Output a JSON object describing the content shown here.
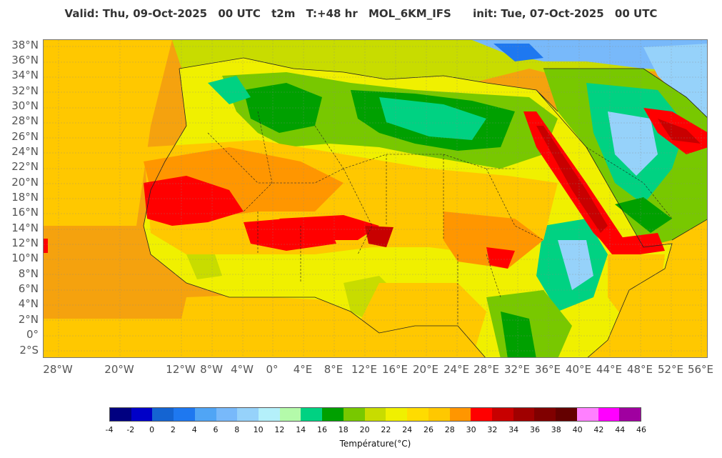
{
  "header": {
    "valid": "Valid: Thu, 09-Oct-2025",
    "valid_time": "00 UTC",
    "variable": "t2m",
    "lead": "T:+48 hr",
    "model": "MOL_6KM_IFS",
    "init": "init: Tue, 07-Oct-2025",
    "init_time": "00 UTC"
  },
  "map": {
    "region": "North Africa and Middle East",
    "lat_labels": [
      "38°N",
      "36°N",
      "34°N",
      "32°N",
      "30°N",
      "28°N",
      "26°N",
      "24°N",
      "22°N",
      "20°N",
      "18°N",
      "16°N",
      "14°N",
      "12°N",
      "10°N",
      "8°N",
      "6°N",
      "4°N",
      "2°N",
      "0°",
      "2°S"
    ],
    "lon_labels": [
      "28°W",
      "20°W",
      "12°W",
      "8°W",
      "4°W",
      "0°",
      "4°E",
      "8°E",
      "12°E",
      "16°E",
      "20°E",
      "24°E",
      "28°E",
      "32°E",
      "36°E",
      "40°E",
      "44°E",
      "48°E",
      "52°E",
      "56°E"
    ],
    "ocean_color": "#f5a20e"
  },
  "legend": {
    "title": "Température(°C)",
    "ticks": [
      "-4",
      "-2",
      "0",
      "2",
      "4",
      "6",
      "8",
      "10",
      "12",
      "14",
      "16",
      "18",
      "20",
      "22",
      "24",
      "26",
      "28",
      "30",
      "32",
      "34",
      "36",
      "38",
      "40",
      "42",
      "44",
      "46"
    ],
    "colors": [
      "#000080",
      "#0000c8",
      "#1464d2",
      "#1e78f0",
      "#50a5f5",
      "#78b9fa",
      "#96d2fa",
      "#b4f0fa",
      "#b4faaa",
      "#00d282",
      "#00a000",
      "#78c800",
      "#c8dc00",
      "#f0f000",
      "#ffdc00",
      "#ffc800",
      "#ff9600",
      "#ff0000",
      "#c80000",
      "#a00000",
      "#800000",
      "#640000",
      "#ff80ff",
      "#ff00ff",
      "#a000a0",
      "#8c64ff"
    ]
  }
}
